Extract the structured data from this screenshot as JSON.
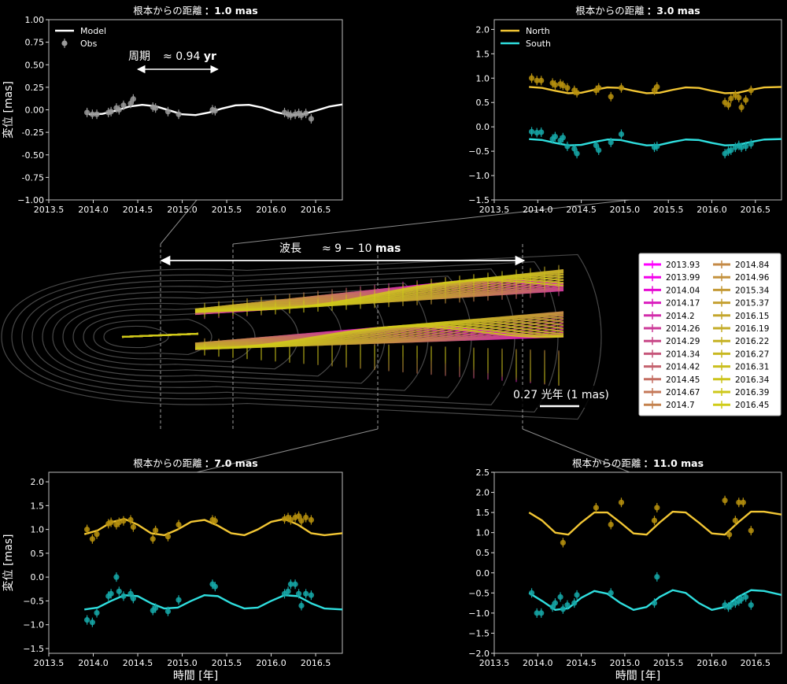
{
  "chart_data": [
    {
      "id": "p1",
      "type": "line",
      "title_prefix": "根本からの距離",
      "title_value": "：1.0 mas",
      "ylabel": "変位 [mas]",
      "xlabel": "",
      "xlim": [
        2013.5,
        2016.8
      ],
      "ylim": [
        -1.0,
        1.0
      ],
      "xticks": [
        2013.5,
        2014.0,
        2014.5,
        2015.0,
        2015.5,
        2016.0,
        2016.5
      ],
      "xtick_labels": [
        "2013.5",
        "2014.0",
        "2014.5",
        "2015.0",
        "2015.5",
        "2016.0",
        "2016.5"
      ],
      "yticks": [
        -1.0,
        -0.75,
        -0.5,
        -0.25,
        0.0,
        0.25,
        0.5,
        0.75,
        1.0
      ],
      "ytick_labels": [
        "−1.00",
        "-0.75",
        "-0.50",
        "-0.25",
        "0.00",
        "0.25",
        "0.50",
        "0.75",
        "1.00"
      ],
      "legend": {
        "placement": "top-left",
        "entries": [
          "Model",
          "Obs"
        ]
      },
      "annotation": {
        "label": "周期",
        "value": "≈ 0.94 ",
        "unit": "yr",
        "x_from": 2014.5,
        "x_to": 2015.4,
        "y": 0.45
      },
      "series": [
        {
          "name": "Model",
          "color": "#ffffff",
          "kind": "line",
          "x": [
            2013.95,
            2014.1,
            2014.25,
            2014.4,
            2014.55,
            2014.7,
            2014.85,
            2015.0,
            2015.15,
            2015.3,
            2015.45,
            2015.6,
            2015.75,
            2015.9,
            2016.05,
            2016.2,
            2016.35,
            2016.5,
            2016.65,
            2016.8
          ],
          "y": [
            -0.05,
            -0.045,
            -0.01,
            0.035,
            0.055,
            0.04,
            -0.005,
            -0.05,
            -0.058,
            -0.03,
            0.015,
            0.05,
            0.055,
            0.025,
            -0.025,
            -0.058,
            -0.05,
            -0.01,
            0.035,
            0.06
          ]
        },
        {
          "name": "Obs",
          "color": "#9a9a9a",
          "kind": "points",
          "x": [
            2013.93,
            2013.99,
            2014.04,
            2014.17,
            2014.2,
            2014.26,
            2014.29,
            2014.34,
            2014.42,
            2014.45,
            2014.67,
            2014.7,
            2014.84,
            2014.96,
            2015.34,
            2015.37,
            2016.15,
            2016.19,
            2016.22,
            2016.27,
            2016.31,
            2016.34,
            2016.39,
            2016.45
          ],
          "y": [
            -0.03,
            -0.05,
            -0.05,
            -0.03,
            -0.02,
            0.02,
            0.0,
            0.05,
            0.07,
            0.12,
            0.03,
            0.02,
            -0.02,
            -0.05,
            0.0,
            -0.01,
            -0.03,
            -0.05,
            -0.06,
            -0.05,
            -0.04,
            -0.06,
            -0.04,
            -0.1
          ]
        }
      ]
    },
    {
      "id": "p2",
      "type": "line",
      "title_prefix": "根本からの距離",
      "title_value": "：3.0 mas",
      "ylabel": "",
      "xlabel": "",
      "xlim": [
        2013.5,
        2016.8
      ],
      "ylim": [
        -1.5,
        2.2
      ],
      "xticks": [
        2013.5,
        2014.0,
        2014.5,
        2015.0,
        2015.5,
        2016.0,
        2016.5
      ],
      "xtick_labels": [
        "2013.5",
        "2014.0",
        "2014.5",
        "2015.0",
        "2015.5",
        "2016.0",
        "2016.5"
      ],
      "yticks": [
        -1.5,
        -1.0,
        -0.5,
        0.0,
        0.5,
        1.0,
        1.5,
        2.0
      ],
      "ytick_labels": [
        "−1.5",
        "−1.0",
        "−0.5",
        "0.0",
        "0.5",
        "1.0",
        "1.5",
        "2.0"
      ],
      "legend": {
        "placement": "top-left",
        "entries": [
          "North",
          "South"
        ]
      },
      "series": [
        {
          "name": "North",
          "color": "#f2c634",
          "kind": "model",
          "x": [
            2013.9,
            2014.05,
            2014.2,
            2014.35,
            2014.5,
            2014.65,
            2014.8,
            2014.95,
            2015.1,
            2015.25,
            2015.4,
            2015.55,
            2015.7,
            2015.85,
            2016.0,
            2016.15,
            2016.3,
            2016.45,
            2016.6,
            2016.8
          ],
          "y": [
            0.82,
            0.8,
            0.74,
            0.69,
            0.7,
            0.76,
            0.81,
            0.8,
            0.74,
            0.69,
            0.7,
            0.76,
            0.81,
            0.8,
            0.74,
            0.69,
            0.7,
            0.76,
            0.81,
            0.82
          ]
        },
        {
          "name": "North obs",
          "color": "#b8920e",
          "kind": "points",
          "x": [
            2013.93,
            2013.99,
            2014.04,
            2014.17,
            2014.2,
            2014.26,
            2014.29,
            2014.34,
            2014.42,
            2014.45,
            2014.67,
            2014.7,
            2014.84,
            2014.96,
            2015.34,
            2015.37,
            2016.15,
            2016.19,
            2016.22,
            2016.27,
            2016.31,
            2016.34,
            2016.39,
            2016.45
          ],
          "y": [
            1.0,
            0.95,
            0.95,
            0.9,
            0.86,
            0.88,
            0.85,
            0.8,
            0.75,
            0.7,
            0.75,
            0.8,
            0.62,
            0.8,
            0.75,
            0.82,
            0.5,
            0.45,
            0.58,
            0.65,
            0.6,
            0.4,
            0.55,
            0.75
          ]
        },
        {
          "name": "South",
          "color": "#2fdede",
          "kind": "model",
          "x": [
            2013.9,
            2014.05,
            2014.2,
            2014.35,
            2014.5,
            2014.65,
            2014.8,
            2014.95,
            2015.1,
            2015.25,
            2015.4,
            2015.55,
            2015.7,
            2015.85,
            2016.0,
            2016.15,
            2016.3,
            2016.45,
            2016.6,
            2016.8
          ],
          "y": [
            -0.25,
            -0.27,
            -0.33,
            -0.38,
            -0.37,
            -0.31,
            -0.26,
            -0.27,
            -0.33,
            -0.38,
            -0.37,
            -0.31,
            -0.26,
            -0.27,
            -0.33,
            -0.38,
            -0.37,
            -0.31,
            -0.26,
            -0.25
          ]
        },
        {
          "name": "South obs",
          "color": "#16a9a9",
          "kind": "points",
          "x": [
            2013.93,
            2013.99,
            2014.04,
            2014.17,
            2014.2,
            2014.26,
            2014.29,
            2014.34,
            2014.42,
            2014.45,
            2014.67,
            2014.7,
            2014.84,
            2014.96,
            2015.34,
            2015.37,
            2016.15,
            2016.19,
            2016.22,
            2016.27,
            2016.31,
            2016.34,
            2016.39,
            2016.45
          ],
          "y": [
            -0.1,
            -0.12,
            -0.11,
            -0.25,
            -0.2,
            -0.28,
            -0.22,
            -0.4,
            -0.45,
            -0.55,
            -0.38,
            -0.48,
            -0.32,
            -0.15,
            -0.42,
            -0.4,
            -0.55,
            -0.5,
            -0.48,
            -0.42,
            -0.38,
            -0.42,
            -0.4,
            -0.35
          ]
        }
      ]
    },
    {
      "id": "p3",
      "type": "line",
      "title_prefix": "根本からの距離",
      "title_value": "：7.0 mas",
      "ylabel": "変位 [mas]",
      "xlabel": "時間 [年]",
      "xlim": [
        2013.5,
        2016.8
      ],
      "ylim": [
        -1.6,
        2.2
      ],
      "xticks": [
        2013.5,
        2014.0,
        2014.5,
        2015.0,
        2015.5,
        2016.0,
        2016.5
      ],
      "xtick_labels": [
        "2013.5",
        "2014.0",
        "2014.5",
        "2015.0",
        "2015.5",
        "2016.0",
        "2016.5"
      ],
      "yticks": [
        -1.5,
        -1.0,
        -0.5,
        0.0,
        0.5,
        1.0,
        1.5,
        2.0
      ],
      "ytick_labels": [
        "−1.5",
        "−1.0",
        "−0.5",
        "0.0",
        "0.5",
        "1.0",
        "1.5",
        "2.0"
      ],
      "series": [
        {
          "name": "North",
          "color": "#f2c634",
          "kind": "model",
          "x": [
            2013.9,
            2014.05,
            2014.2,
            2014.35,
            2014.5,
            2014.65,
            2014.8,
            2014.95,
            2015.1,
            2015.25,
            2015.4,
            2015.55,
            2015.7,
            2015.85,
            2016.0,
            2016.15,
            2016.3,
            2016.45,
            2016.6,
            2016.8
          ],
          "y": [
            0.9,
            0.98,
            1.15,
            1.22,
            1.1,
            0.92,
            0.88,
            1.0,
            1.16,
            1.2,
            1.08,
            0.92,
            0.88,
            1.0,
            1.16,
            1.22,
            1.1,
            0.92,
            0.88,
            0.92
          ]
        },
        {
          "name": "North obs",
          "color": "#b8920e",
          "kind": "points",
          "x": [
            2013.93,
            2013.99,
            2014.04,
            2014.17,
            2014.2,
            2014.26,
            2014.29,
            2014.34,
            2014.42,
            2014.45,
            2014.67,
            2014.7,
            2014.84,
            2014.96,
            2015.34,
            2015.37,
            2016.15,
            2016.19,
            2016.22,
            2016.27,
            2016.31,
            2016.34,
            2016.39,
            2016.45
          ],
          "y": [
            1.0,
            0.8,
            0.9,
            1.12,
            1.15,
            1.1,
            1.15,
            1.18,
            1.2,
            1.05,
            0.8,
            0.98,
            0.85,
            1.1,
            1.2,
            1.18,
            1.22,
            1.25,
            1.2,
            1.25,
            1.28,
            1.18,
            1.25,
            1.2
          ]
        },
        {
          "name": "South",
          "color": "#2fdede",
          "kind": "model",
          "x": [
            2013.9,
            2014.05,
            2014.2,
            2014.35,
            2014.5,
            2014.65,
            2014.8,
            2014.95,
            2015.1,
            2015.25,
            2015.4,
            2015.55,
            2015.7,
            2015.85,
            2016.0,
            2016.15,
            2016.3,
            2016.45,
            2016.6,
            2016.8
          ],
          "y": [
            -0.68,
            -0.64,
            -0.5,
            -0.38,
            -0.4,
            -0.55,
            -0.66,
            -0.64,
            -0.5,
            -0.38,
            -0.4,
            -0.55,
            -0.66,
            -0.64,
            -0.5,
            -0.38,
            -0.4,
            -0.55,
            -0.66,
            -0.68
          ]
        },
        {
          "name": "South obs",
          "color": "#16a9a9",
          "kind": "points",
          "x": [
            2013.93,
            2013.99,
            2014.04,
            2014.17,
            2014.2,
            2014.26,
            2014.29,
            2014.34,
            2014.42,
            2014.45,
            2014.67,
            2014.7,
            2014.84,
            2014.96,
            2015.34,
            2015.37,
            2016.15,
            2016.19,
            2016.22,
            2016.27,
            2016.31,
            2016.34,
            2016.39,
            2016.45
          ],
          "y": [
            -0.9,
            -0.95,
            -0.75,
            -0.4,
            -0.35,
            0.0,
            -0.3,
            -0.4,
            -0.35,
            -0.45,
            -0.7,
            -0.65,
            -0.72,
            -0.48,
            -0.15,
            -0.2,
            -0.35,
            -0.3,
            -0.15,
            -0.15,
            -0.35,
            -0.6,
            -0.35,
            -0.38
          ]
        }
      ]
    },
    {
      "id": "p4",
      "type": "line",
      "title_prefix": "根本からの距離",
      "title_value": "：11.0 mas",
      "ylabel": "",
      "xlabel": "時間 [年]",
      "xlim": [
        2013.5,
        2016.8
      ],
      "ylim": [
        -2.0,
        2.5
      ],
      "xticks": [
        2013.5,
        2014.0,
        2014.5,
        2015.0,
        2015.5,
        2016.0,
        2016.5
      ],
      "xtick_labels": [
        "2013.5",
        "2014.0",
        "2014.5",
        "2015.0",
        "2015.5",
        "2016.0",
        "2016.5"
      ],
      "yticks": [
        -2.0,
        -1.5,
        -1.0,
        -0.5,
        0.0,
        0.5,
        1.0,
        1.5,
        2.0,
        2.5
      ],
      "ytick_labels": [
        "−2.0",
        "−1.5",
        "−1.0",
        "−0.5",
        "0.0",
        "0.5",
        "1.0",
        "1.5",
        "2.0",
        "2.5"
      ],
      "series": [
        {
          "name": "North",
          "color": "#f2c634",
          "kind": "model",
          "x": [
            2013.9,
            2014.05,
            2014.2,
            2014.35,
            2014.5,
            2014.65,
            2014.8,
            2014.95,
            2015.1,
            2015.25,
            2015.4,
            2015.55,
            2015.7,
            2015.85,
            2016.0,
            2016.15,
            2016.3,
            2016.45,
            2016.6,
            2016.8
          ],
          "y": [
            1.5,
            1.3,
            1.0,
            0.95,
            1.25,
            1.5,
            1.5,
            1.25,
            0.98,
            0.95,
            1.25,
            1.52,
            1.5,
            1.25,
            0.98,
            0.95,
            1.25,
            1.52,
            1.52,
            1.45
          ]
        },
        {
          "name": "North obs",
          "color": "#b8920e",
          "kind": "points",
          "x": [
            2014.29,
            2014.67,
            2014.84,
            2014.96,
            2015.34,
            2015.37,
            2016.15,
            2016.2,
            2016.27,
            2016.31,
            2016.36,
            2016.45
          ],
          "y": [
            0.75,
            1.62,
            1.2,
            1.75,
            1.3,
            1.62,
            1.8,
            0.95,
            1.3,
            1.75,
            1.75,
            1.05
          ]
        },
        {
          "name": "South",
          "color": "#2fdede",
          "kind": "model",
          "x": [
            2013.9,
            2014.05,
            2014.2,
            2014.35,
            2014.5,
            2014.65,
            2014.8,
            2014.95,
            2015.1,
            2015.25,
            2015.4,
            2015.55,
            2015.7,
            2015.85,
            2016.0,
            2016.15,
            2016.3,
            2016.45,
            2016.6,
            2016.8
          ],
          "y": [
            -0.5,
            -0.7,
            -0.92,
            -0.88,
            -0.62,
            -0.45,
            -0.52,
            -0.75,
            -0.92,
            -0.85,
            -0.6,
            -0.43,
            -0.5,
            -0.75,
            -0.92,
            -0.85,
            -0.6,
            -0.43,
            -0.45,
            -0.55
          ]
        },
        {
          "name": "South obs",
          "color": "#16a9a9",
          "kind": "points",
          "x": [
            2013.93,
            2013.99,
            2014.04,
            2014.17,
            2014.2,
            2014.26,
            2014.29,
            2014.34,
            2014.42,
            2014.45,
            2014.84,
            2015.34,
            2015.37,
            2016.15,
            2016.19,
            2016.22,
            2016.27,
            2016.31,
            2016.34,
            2016.39,
            2016.45
          ],
          "y": [
            -0.5,
            -1.0,
            -1.0,
            -0.85,
            -0.75,
            -0.6,
            -0.9,
            -0.8,
            -0.75,
            -0.55,
            -0.5,
            -0.75,
            -0.1,
            -0.8,
            -0.85,
            -0.8,
            -0.75,
            -0.7,
            -0.65,
            -0.6,
            -0.8
          ]
        }
      ]
    },
    {
      "id": "jet",
      "type": "line",
      "title": "",
      "annotation": {
        "label": "波長",
        "value": "≈ 9 − 10 ",
        "unit": "mas"
      },
      "scalebar": {
        "label": "0.27 光年 (1 mas)"
      },
      "distance_guides_mas": [
        1.0,
        3.0,
        7.0,
        11.0
      ],
      "legend": {
        "placement": "right",
        "entries": [
          "2013.93",
          "2013.99",
          "2014.04",
          "2014.17",
          "2014.2",
          "2014.26",
          "2014.29",
          "2014.34",
          "2014.42",
          "2014.45",
          "2014.67",
          "2014.7",
          "2014.84",
          "2014.96",
          "2015.34",
          "2015.37",
          "2016.15",
          "2016.19",
          "2016.22",
          "2016.27",
          "2016.31",
          "2016.34",
          "2016.39",
          "2016.45"
        ],
        "colors": [
          "#ff00ff",
          "#f200ea",
          "#e60ad2",
          "#da1cbe",
          "#d22caa",
          "#cc3a98",
          "#c84888",
          "#c6567a",
          "#c4626e",
          "#c46e62",
          "#c47858",
          "#c4824e",
          "#c48a46",
          "#c4923e",
          "#c49a36",
          "#c4a030",
          "#c4a62c",
          "#c4ac28",
          "#c6b224",
          "#c8b820",
          "#cabe1e",
          "#ccc41c",
          "#cec81a",
          "#d0cc18"
        ]
      }
    }
  ]
}
